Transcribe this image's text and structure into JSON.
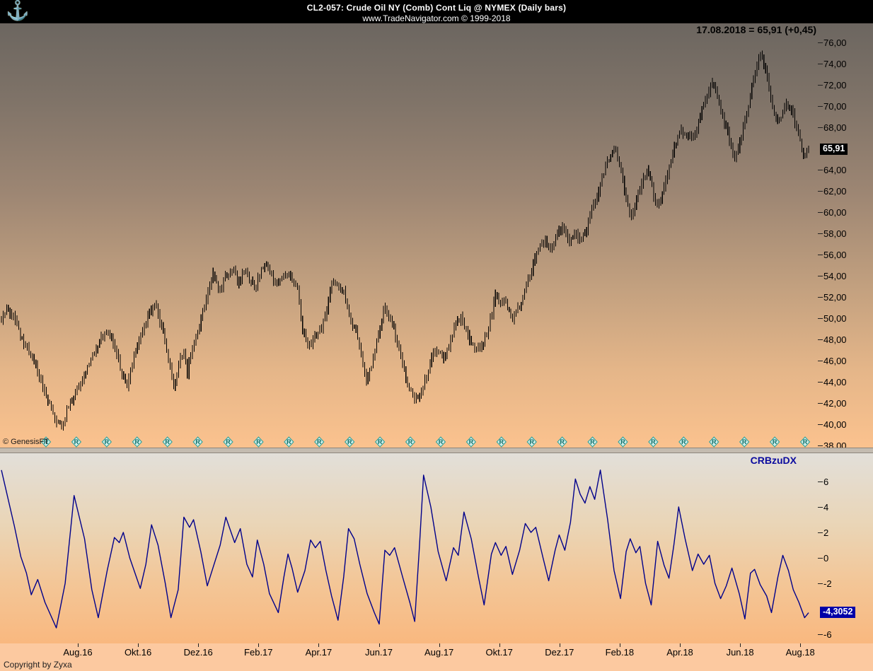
{
  "header": {
    "title": "CL2-057:  Crude Oil NY (Comb) Cont Liq @ NYMEX  (Daily bars)",
    "subtitle": "www.TradeNavigator.com © 1999-2018",
    "logo_icon": "anchor-icon"
  },
  "readout": {
    "text": "17.08.2018 = 65,91 (+0,45)"
  },
  "price_panel": {
    "watermark": "© GenesisFT",
    "last_price_label": "65,91",
    "last_price_value": 65.91,
    "axis_ticks": [
      [
        76,
        "76,00"
      ],
      [
        74,
        "74,00"
      ],
      [
        72,
        "72,00"
      ],
      [
        70,
        "70,00"
      ],
      [
        68,
        "68,00"
      ],
      [
        64,
        "64,00"
      ],
      [
        62,
        "62,00"
      ],
      [
        60,
        "60,00"
      ],
      [
        58,
        "58,00"
      ],
      [
        56,
        "56,00"
      ],
      [
        54,
        "54,00"
      ],
      [
        52,
        "52,00"
      ],
      [
        50,
        "50,00"
      ],
      [
        48,
        "48,00"
      ],
      [
        46,
        "46,00"
      ],
      [
        44,
        "44,00"
      ],
      [
        42,
        "42,00"
      ],
      [
        40,
        "40,00"
      ],
      [
        38,
        "38,00"
      ]
    ],
    "rollover_markers": {
      "letter": "R",
      "count": 26
    }
  },
  "indicator_panel": {
    "name": "CRBzuDX",
    "last_value_label": "-4,3052",
    "last_value": -4.3052,
    "axis_ticks": [
      [
        6,
        "6"
      ],
      [
        4,
        "4"
      ],
      [
        2,
        "2"
      ],
      [
        0,
        "0"
      ],
      [
        -2,
        "-2"
      ],
      [
        -6,
        "-6"
      ]
    ]
  },
  "x_axis": {
    "labels": [
      "Aug.16",
      "Okt.16",
      "Dez.16",
      "Feb.17",
      "Apr.17",
      "Jun.17",
      "Aug.17",
      "Okt.17",
      "Dez.17",
      "Feb.18",
      "Apr.18",
      "Jun.18",
      "Aug.18"
    ]
  },
  "footer": {
    "text": "Copyright by Zyxa"
  },
  "colors": {
    "header_bg": "#000000",
    "header_text": "#ffffff",
    "anchor_gold": "#d7a41f",
    "bars": "#000000",
    "indicator_line": "#00008b",
    "indicator_label": "#0a0a9e",
    "price_badge_bg": "#000000",
    "indicator_badge_bg": "#0000a8",
    "marker_teal": "#2d9f98",
    "panel1_top": "#6c6660",
    "panel1_bottom": "#fbc28e",
    "panel2_top": "#e2dfd8",
    "panel2_bottom": "#f9b87f",
    "page_bg": "#fcc9a0"
  },
  "chart_data": [
    {
      "type": "line",
      "render_style": "ohlc-daily-bars",
      "name": "Crude Oil NY (Comb) Cont Liq @ NYMEX, Daily",
      "x_range": "mid-2016 to 17.08.2018 (x = fraction of plot width)",
      "x_tick_labels": [
        "Aug.16",
        "Okt.16",
        "Dez.16",
        "Feb.17",
        "Apr.17",
        "Jun.17",
        "Aug.17",
        "Okt.17",
        "Dez.17",
        "Feb.18",
        "Apr.18",
        "Jun.18",
        "Aug.18"
      ],
      "ylim": [
        37.7,
        76.8
      ],
      "y_ticks": [
        38,
        40,
        42,
        44,
        46,
        48,
        50,
        52,
        54,
        56,
        58,
        60,
        62,
        64,
        66,
        68,
        70,
        72,
        74,
        76
      ],
      "last_close": 65.91,
      "last_change": 0.45,
      "points": [
        [
          0,
          49.6
        ],
        [
          0.007,
          51.2
        ],
        [
          0.016,
          50.0
        ],
        [
          0.026,
          48.0
        ],
        [
          0.037,
          46.5
        ],
        [
          0.045,
          45.2
        ],
        [
          0.054,
          43.0
        ],
        [
          0.063,
          41.2
        ],
        [
          0.074,
          39.6
        ],
        [
          0.083,
          41.8
        ],
        [
          0.092,
          43.0
        ],
        [
          0.101,
          44.3
        ],
        [
          0.112,
          46.3
        ],
        [
          0.122,
          48.0
        ],
        [
          0.131,
          48.9
        ],
        [
          0.14,
          47.5
        ],
        [
          0.149,
          44.8
        ],
        [
          0.155,
          43.6
        ],
        [
          0.164,
          46.3
        ],
        [
          0.173,
          48.3
        ],
        [
          0.182,
          50.3
        ],
        [
          0.189,
          51.4
        ],
        [
          0.197,
          49.5
        ],
        [
          0.205,
          47.0
        ],
        [
          0.214,
          43.4
        ],
        [
          0.22,
          45.8
        ],
        [
          0.226,
          46.8
        ],
        [
          0.23,
          44.8
        ],
        [
          0.236,
          47.3
        ],
        [
          0.245,
          49.3
        ],
        [
          0.254,
          51.8
        ],
        [
          0.262,
          54.2
        ],
        [
          0.269,
          52.6
        ],
        [
          0.278,
          53.9
        ],
        [
          0.287,
          54.6
        ],
        [
          0.294,
          53.2
        ],
        [
          0.302,
          54.8
        ],
        [
          0.308,
          53.4
        ],
        [
          0.315,
          52.7
        ],
        [
          0.322,
          54.9
        ],
        [
          0.328,
          55.2
        ],
        [
          0.334,
          54.1
        ],
        [
          0.341,
          53.3
        ],
        [
          0.348,
          53.9
        ],
        [
          0.355,
          54.3
        ],
        [
          0.362,
          53.5
        ],
        [
          0.367,
          52.8
        ],
        [
          0.373,
          49.0
        ],
        [
          0.381,
          47.3
        ],
        [
          0.388,
          48.2
        ],
        [
          0.395,
          48.7
        ],
        [
          0.402,
          50.6
        ],
        [
          0.411,
          53.5
        ],
        [
          0.418,
          52.9
        ],
        [
          0.425,
          52.5
        ],
        [
          0.432,
          49.9
        ],
        [
          0.439,
          48.8
        ],
        [
          0.446,
          46.5
        ],
        [
          0.453,
          43.9
        ],
        [
          0.46,
          45.9
        ],
        [
          0.467,
          48.4
        ],
        [
          0.475,
          51.3
        ],
        [
          0.483,
          49.5
        ],
        [
          0.49,
          47.9
        ],
        [
          0.497,
          45.6
        ],
        [
          0.504,
          43.6
        ],
        [
          0.513,
          42.1
        ],
        [
          0.52,
          43.2
        ],
        [
          0.527,
          44.6
        ],
        [
          0.535,
          46.8
        ],
        [
          0.541,
          47.0
        ],
        [
          0.548,
          45.8
        ],
        [
          0.555,
          47.6
        ],
        [
          0.562,
          49.3
        ],
        [
          0.569,
          50.1
        ],
        [
          0.576,
          48.6
        ],
        [
          0.583,
          47.5
        ],
        [
          0.59,
          47.2
        ],
        [
          0.597,
          47.6
        ],
        [
          0.604,
          49.4
        ],
        [
          0.612,
          52.1
        ],
        [
          0.619,
          51.6
        ],
        [
          0.626,
          51.4
        ],
        [
          0.633,
          49.9
        ],
        [
          0.64,
          51.0
        ],
        [
          0.647,
          52.2
        ],
        [
          0.654,
          54.0
        ],
        [
          0.661,
          55.6
        ],
        [
          0.668,
          56.8
        ],
        [
          0.675,
          57.2
        ],
        [
          0.682,
          56.5
        ],
        [
          0.689,
          58.0
        ],
        [
          0.696,
          58.6
        ],
        [
          0.703,
          57.2
        ],
        [
          0.71,
          57.9
        ],
        [
          0.717,
          57.4
        ],
        [
          0.724,
          58.1
        ],
        [
          0.731,
          60.1
        ],
        [
          0.738,
          61.6
        ],
        [
          0.745,
          63.6
        ],
        [
          0.752,
          65.0
        ],
        [
          0.759,
          66.2
        ],
        [
          0.766,
          64.5
        ],
        [
          0.773,
          61.5
        ],
        [
          0.78,
          59.3
        ],
        [
          0.787,
          61.2
        ],
        [
          0.794,
          62.9
        ],
        [
          0.801,
          64.1
        ],
        [
          0.808,
          61.5
        ],
        [
          0.814,
          60.5
        ],
        [
          0.821,
          62.2
        ],
        [
          0.828,
          64.6
        ],
        [
          0.835,
          66.4
        ],
        [
          0.842,
          67.9
        ],
        [
          0.849,
          67.2
        ],
        [
          0.856,
          67.0
        ],
        [
          0.863,
          68.3
        ],
        [
          0.87,
          70.3
        ],
        [
          0.877,
          71.3
        ],
        [
          0.882,
          72.3
        ],
        [
          0.887,
          70.9
        ],
        [
          0.894,
          68.9
        ],
        [
          0.901,
          67.0
        ],
        [
          0.908,
          64.9
        ],
        [
          0.913,
          66.2
        ],
        [
          0.92,
          68.3
        ],
        [
          0.927,
          70.7
        ],
        [
          0.934,
          73.2
        ],
        [
          0.939,
          75.0
        ],
        [
          0.945,
          73.9
        ],
        [
          0.95,
          72.3
        ],
        [
          0.955,
          70.1
        ],
        [
          0.961,
          68.5
        ],
        [
          0.966,
          69.2
        ],
        [
          0.971,
          70.0
        ],
        [
          0.976,
          70.2
        ],
        [
          0.982,
          68.8
        ],
        [
          0.987,
          67.3
        ],
        [
          0.992,
          65.9
        ],
        [
          0.996,
          64.9
        ],
        [
          1,
          65.91
        ]
      ]
    },
    {
      "type": "line",
      "name": "CRBzuDX",
      "ylim": [
        -6.7,
        8.2
      ],
      "y_ticks": [
        -6,
        -4,
        -2,
        0,
        2,
        4,
        6
      ],
      "last_value": -4.3052,
      "points": [
        [
          0,
          6.9
        ],
        [
          0.016,
          2.5
        ],
        [
          0.024,
          0.1
        ],
        [
          0.031,
          -1.2
        ],
        [
          0.037,
          -2.9
        ],
        [
          0.045,
          -1.7
        ],
        [
          0.054,
          -3.5
        ],
        [
          0.068,
          -5.5
        ],
        [
          0.079,
          -2.0
        ],
        [
          0.09,
          4.9
        ],
        [
          0.103,
          1.5
        ],
        [
          0.112,
          -2.5
        ],
        [
          0.12,
          -4.7
        ],
        [
          0.131,
          -1.0
        ],
        [
          0.14,
          1.6
        ],
        [
          0.146,
          1.2
        ],
        [
          0.151,
          2.0
        ],
        [
          0.159,
          0.0
        ],
        [
          0.172,
          -2.4
        ],
        [
          0.179,
          -0.5
        ],
        [
          0.186,
          2.6
        ],
        [
          0.194,
          1.0
        ],
        [
          0.203,
          -2.0
        ],
        [
          0.21,
          -4.7
        ],
        [
          0.219,
          -2.5
        ],
        [
          0.226,
          3.2
        ],
        [
          0.233,
          2.4
        ],
        [
          0.238,
          3.0
        ],
        [
          0.247,
          0.5
        ],
        [
          0.255,
          -2.2
        ],
        [
          0.262,
          -0.8
        ],
        [
          0.271,
          1.0
        ],
        [
          0.278,
          3.2
        ],
        [
          0.289,
          1.2
        ],
        [
          0.296,
          2.3
        ],
        [
          0.304,
          -0.5
        ],
        [
          0.311,
          -1.5
        ],
        [
          0.317,
          1.4
        ],
        [
          0.325,
          -0.5
        ],
        [
          0.332,
          -2.8
        ],
        [
          0.343,
          -4.3
        ],
        [
          0.35,
          -1.5
        ],
        [
          0.355,
          0.3
        ],
        [
          0.36,
          -0.8
        ],
        [
          0.367,
          -2.7
        ],
        [
          0.376,
          -1.0
        ],
        [
          0.383,
          1.4
        ],
        [
          0.389,
          0.8
        ],
        [
          0.395,
          1.3
        ],
        [
          0.402,
          -1.0
        ],
        [
          0.409,
          -3.0
        ],
        [
          0.417,
          -4.9
        ],
        [
          0.424,
          -1.5
        ],
        [
          0.43,
          2.3
        ],
        [
          0.437,
          1.5
        ],
        [
          0.444,
          -0.5
        ],
        [
          0.453,
          -2.8
        ],
        [
          0.462,
          -4.3
        ],
        [
          0.468,
          -5.2
        ],
        [
          0.475,
          0.6
        ],
        [
          0.481,
          0.2
        ],
        [
          0.487,
          0.8
        ],
        [
          0.497,
          -1.5
        ],
        [
          0.506,
          -3.5
        ],
        [
          0.512,
          -5.0
        ],
        [
          0.518,
          1.0
        ],
        [
          0.523,
          6.5
        ],
        [
          0.532,
          4.0
        ],
        [
          0.541,
          0.5
        ],
        [
          0.551,
          -1.8
        ],
        [
          0.56,
          0.8
        ],
        [
          0.566,
          0.2
        ],
        [
          0.573,
          3.6
        ],
        [
          0.582,
          1.5
        ],
        [
          0.591,
          -1.5
        ],
        [
          0.598,
          -3.7
        ],
        [
          0.607,
          0.3
        ],
        [
          0.612,
          1.2
        ],
        [
          0.619,
          0.2
        ],
        [
          0.625,
          0.9
        ],
        [
          0.633,
          -1.3
        ],
        [
          0.642,
          0.6
        ],
        [
          0.649,
          2.7
        ],
        [
          0.656,
          2.0
        ],
        [
          0.662,
          2.4
        ],
        [
          0.671,
          0.0
        ],
        [
          0.678,
          -1.8
        ],
        [
          0.686,
          0.6
        ],
        [
          0.691,
          1.8
        ],
        [
          0.698,
          0.6
        ],
        [
          0.705,
          2.8
        ],
        [
          0.711,
          6.2
        ],
        [
          0.717,
          5.0
        ],
        [
          0.723,
          4.3
        ],
        [
          0.729,
          5.6
        ],
        [
          0.735,
          4.6
        ],
        [
          0.742,
          6.9
        ],
        [
          0.751,
          3.0
        ],
        [
          0.759,
          -1.0
        ],
        [
          0.767,
          -3.2
        ],
        [
          0.774,
          0.5
        ],
        [
          0.779,
          1.5
        ],
        [
          0.786,
          0.4
        ],
        [
          0.791,
          0.9
        ],
        [
          0.798,
          -2.0
        ],
        [
          0.805,
          -3.7
        ],
        [
          0.813,
          1.3
        ],
        [
          0.821,
          -0.6
        ],
        [
          0.827,
          -1.6
        ],
        [
          0.833,
          1.0
        ],
        [
          0.839,
          4.0
        ],
        [
          0.847,
          1.5
        ],
        [
          0.856,
          -1.0
        ],
        [
          0.863,
          0.3
        ],
        [
          0.87,
          -0.5
        ],
        [
          0.877,
          0.2
        ],
        [
          0.884,
          -2.0
        ],
        [
          0.891,
          -3.2
        ],
        [
          0.898,
          -2.2
        ],
        [
          0.905,
          -0.8
        ],
        [
          0.914,
          -2.8
        ],
        [
          0.921,
          -4.8
        ],
        [
          0.928,
          -1.2
        ],
        [
          0.933,
          -0.9
        ],
        [
          0.94,
          -2.1
        ],
        [
          0.948,
          -3.0
        ],
        [
          0.954,
          -4.3
        ],
        [
          0.962,
          -1.5
        ],
        [
          0.968,
          0.2
        ],
        [
          0.975,
          -1.0
        ],
        [
          0.981,
          -2.5
        ],
        [
          0.988,
          -3.5
        ],
        [
          0.995,
          -4.7
        ],
        [
          1,
          -4.31
        ]
      ]
    }
  ]
}
